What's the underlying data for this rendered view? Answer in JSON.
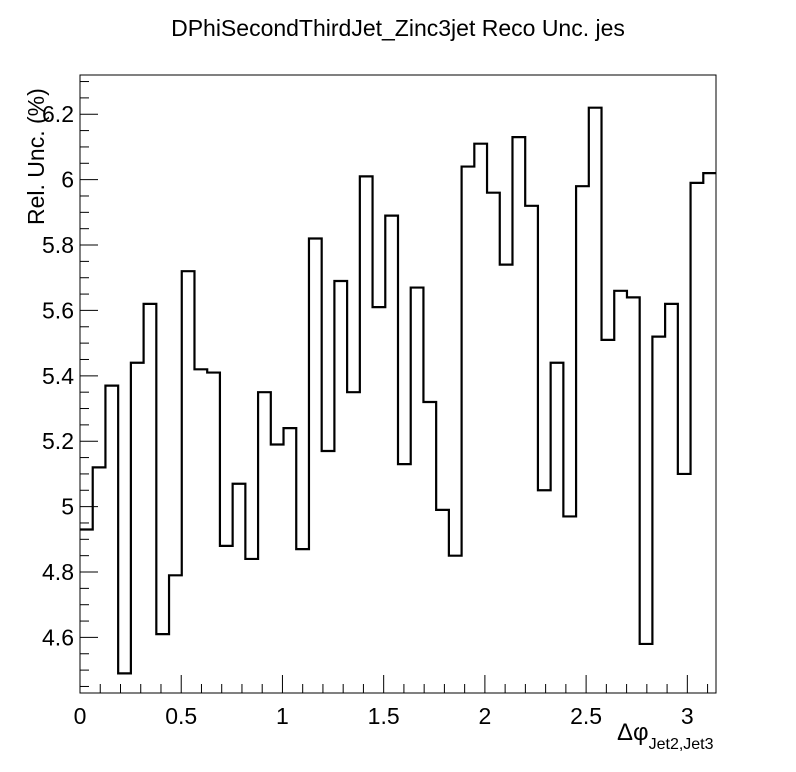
{
  "chart_data": {
    "type": "line",
    "style": "step-histogram",
    "title": "DPhiSecondThirdJet_Zinc3jet Reco Unc. jes",
    "xlabel": "Δφ",
    "xlabel_subscript": "Jet2,Jet3",
    "ylabel": "Rel. Unc. (%)",
    "xlim": [
      0,
      3.1416
    ],
    "ylim": [
      4.43,
      6.32
    ],
    "x_ticks": [
      0,
      0.5,
      1,
      1.5,
      2,
      2.5,
      3
    ],
    "x_tick_labels": [
      "0",
      "0.5",
      "1",
      "1.5",
      "2",
      "2.5",
      "3"
    ],
    "y_ticks": [
      4.6,
      4.8,
      5,
      5.2,
      5.4,
      5.6,
      5.8,
      6,
      6.2
    ],
    "y_tick_labels": [
      "4.6",
      "4.8",
      "5",
      "5.2",
      "5.4",
      "5.6",
      "5.8",
      "6",
      "6.2"
    ],
    "grid": false,
    "legend": "none",
    "line_color": "#000000",
    "bins": 50,
    "values": [
      4.93,
      5.12,
      5.37,
      4.49,
      5.44,
      5.62,
      4.61,
      4.79,
      5.72,
      5.42,
      5.41,
      4.88,
      5.07,
      4.84,
      5.35,
      5.19,
      5.24,
      4.87,
      5.82,
      5.17,
      5.69,
      5.35,
      6.01,
      5.61,
      5.89,
      5.13,
      5.67,
      5.32,
      4.99,
      4.85,
      6.04,
      6.11,
      5.96,
      5.74,
      6.13,
      5.92,
      5.05,
      5.44,
      4.97,
      5.98,
      6.22,
      5.51,
      5.66,
      5.64,
      4.58,
      5.52,
      5.62,
      5.1,
      5.99,
      6.02
    ]
  }
}
